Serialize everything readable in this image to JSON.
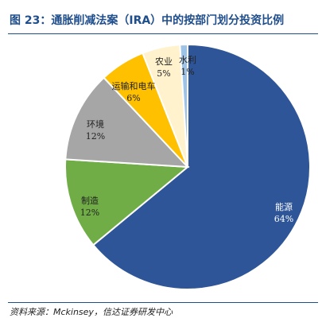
{
  "header": {
    "title": "图 23：通胀削减法案（IRA）中的按部门划分投资比例"
  },
  "chart_data": {
    "type": "pie",
    "slices": [
      {
        "label": "能源",
        "value": 64,
        "value_label": "64%",
        "color": "#2e5597"
      },
      {
        "label": "制造",
        "value": 12,
        "value_label": "12%",
        "color": "#70ad47"
      },
      {
        "label": "环境",
        "value": 12,
        "value_label": "12%",
        "color": "#a6a6a6"
      },
      {
        "label": "运输和电车",
        "value": 6,
        "value_label": "6%",
        "color": "#ffc000"
      },
      {
        "label": "农业",
        "value": 5,
        "value_label": "5%",
        "color": "#fff2cc"
      },
      {
        "label": "水利",
        "value": 1,
        "value_label": "1%",
        "color": "#9dc3e6"
      }
    ],
    "legend": "none",
    "start": "12 o'clock",
    "direction": "clockwise"
  },
  "footer": {
    "source": "资料来源：Mckinsey，信达证券研发中心"
  }
}
